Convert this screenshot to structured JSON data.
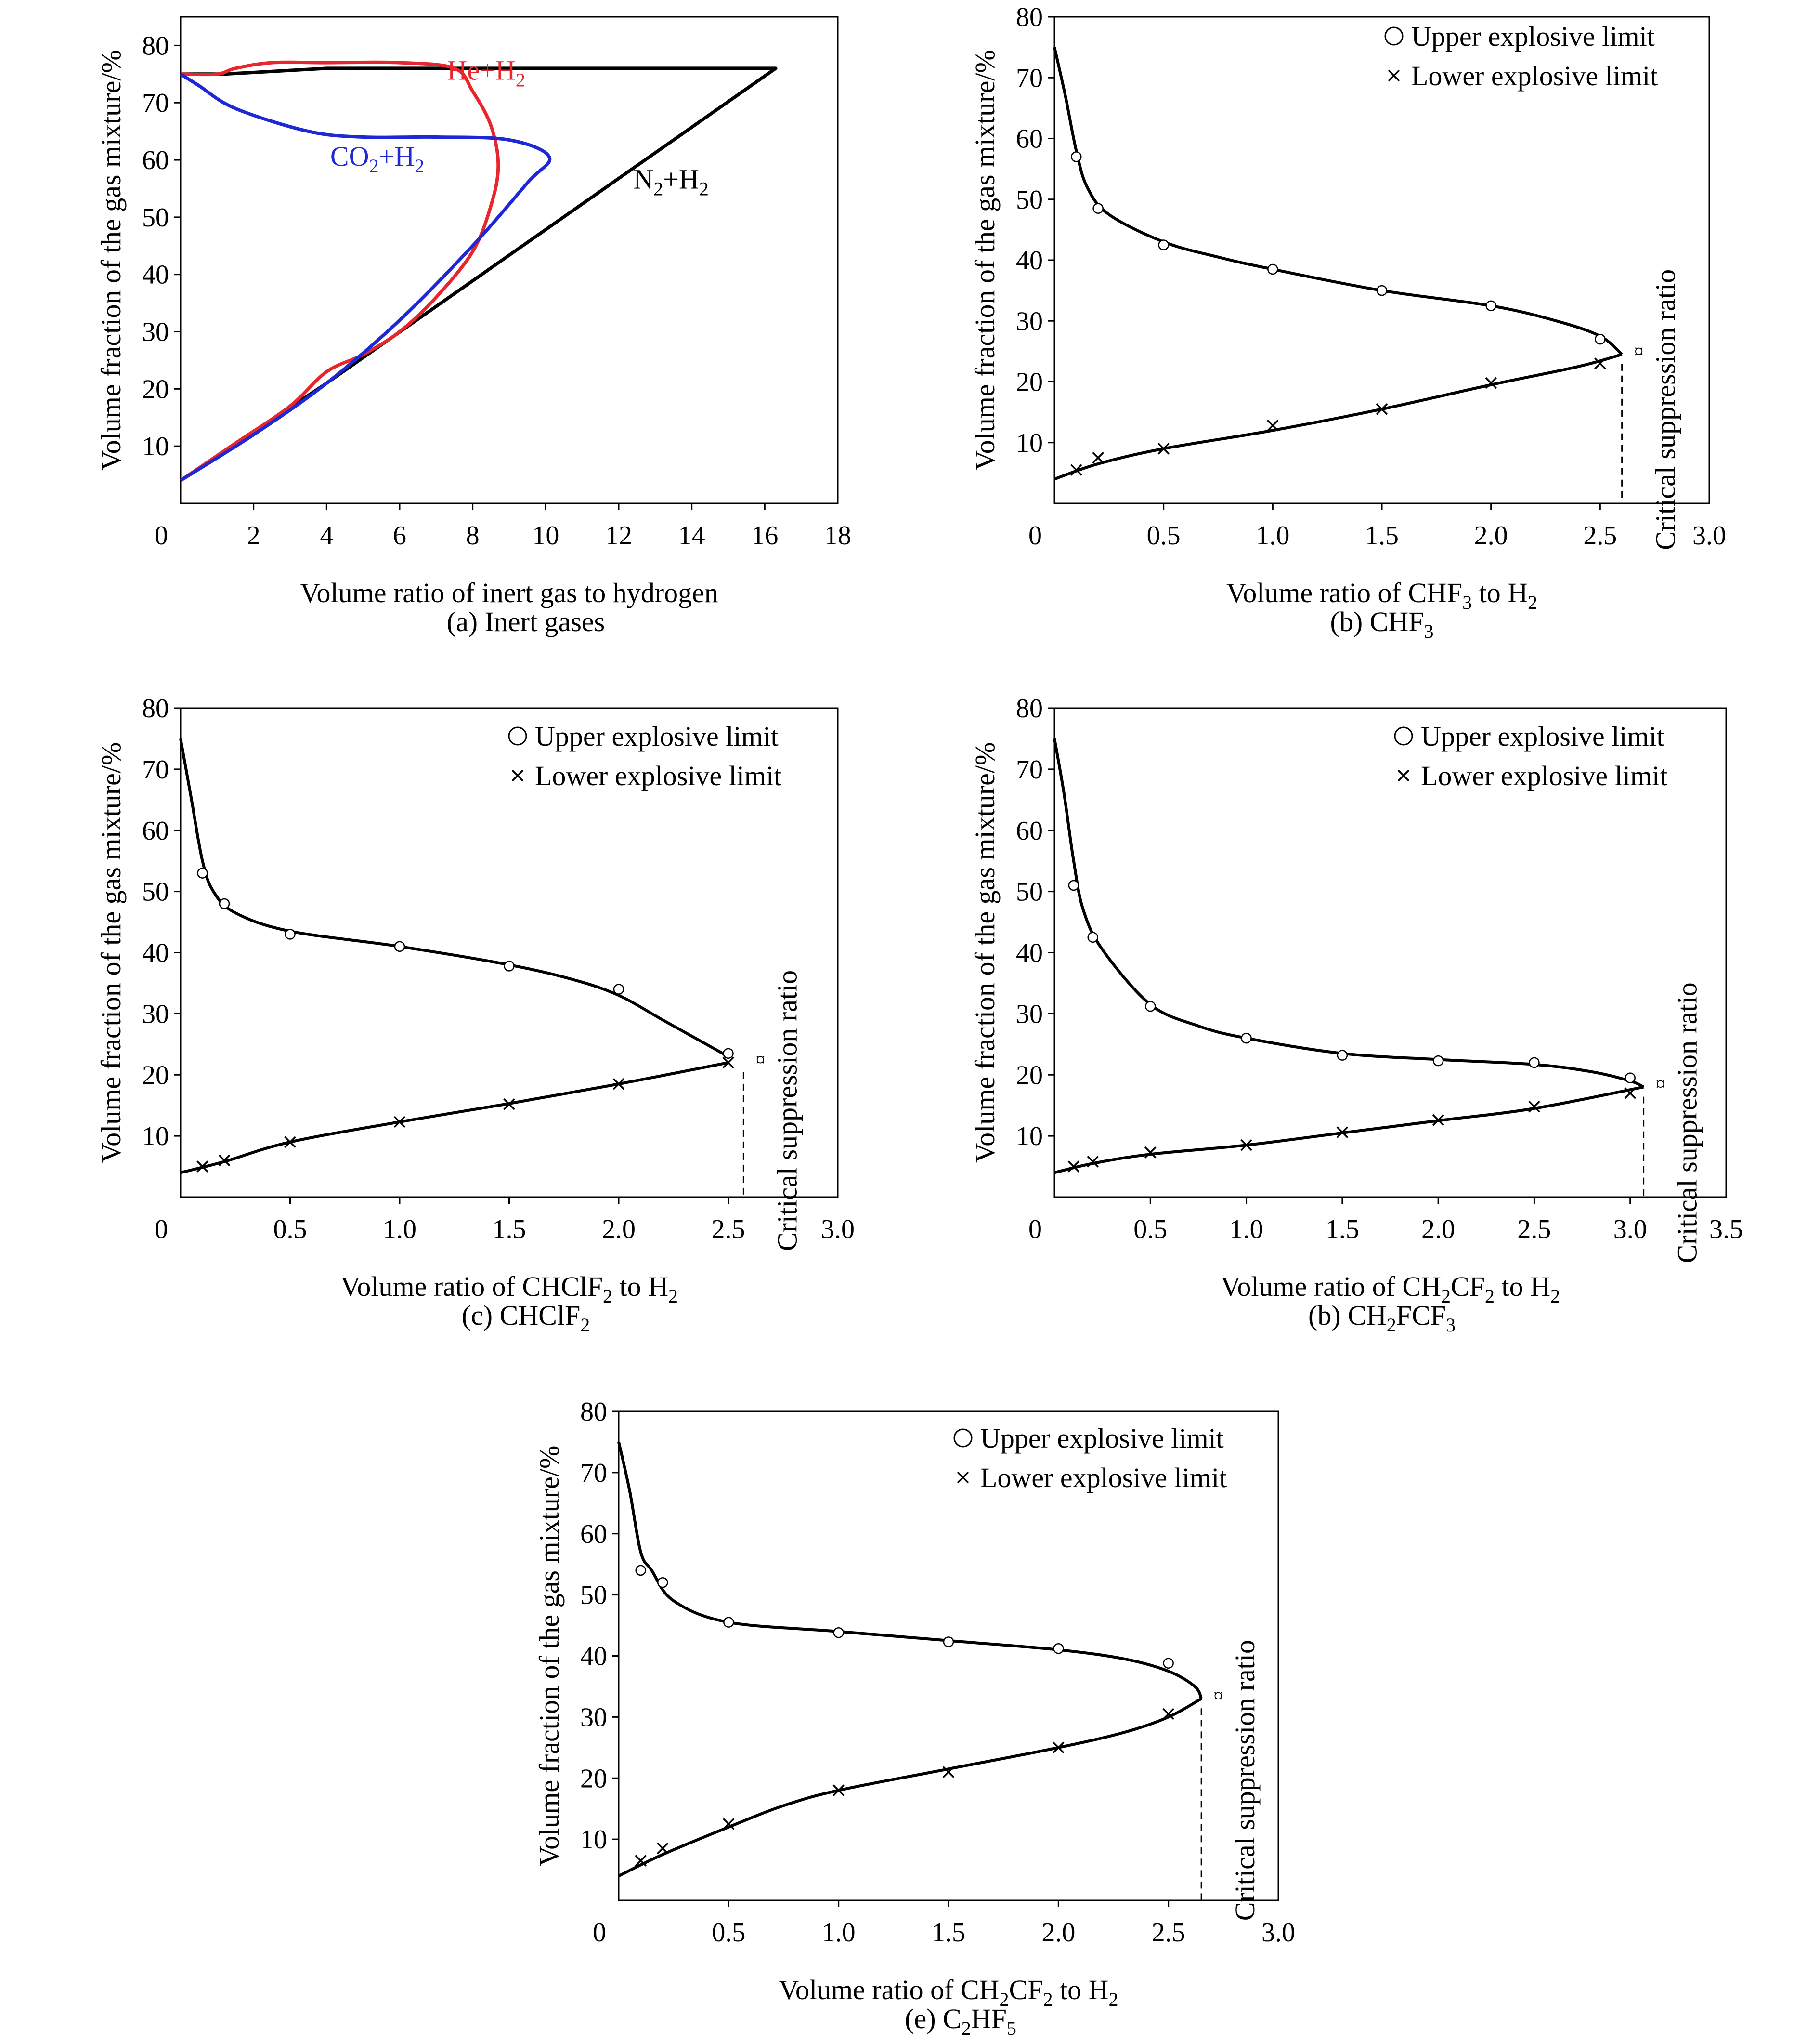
{
  "figure": {
    "panels": [
      {
        "caption": "(a) Inert gases"
      },
      {
        "caption": "(b) CHF3"
      },
      {
        "caption": "(c) CHClF2"
      },
      {
        "caption": "(b) CH2FCF3"
      },
      {
        "caption": "(e) C2HF5"
      }
    ]
  },
  "chart_data": [
    {
      "type": "line",
      "caption": "(a) Inert gases",
      "xlabel": "Volume ratio of inert gas to hydrogen",
      "ylabel": "Volume fraction of the gas mixture/%",
      "xlim": [
        0,
        18
      ],
      "ylim": [
        0,
        85
      ],
      "xticks": [
        0,
        2,
        4,
        6,
        8,
        10,
        12,
        14,
        16,
        18
      ],
      "yticks": [
        10,
        20,
        30,
        40,
        50,
        60,
        70,
        80
      ],
      "grid": false,
      "colors": {
        "N2": "#000000",
        "He": "#e8262b",
        "CO2": "#1f28d6"
      },
      "series": [
        {
          "name": "N₂+H₂",
          "color": "#000000",
          "points": [
            [
              0,
              4
            ],
            [
              4,
              21
            ],
            [
              16.3,
              76
            ],
            [
              4,
              76
            ],
            [
              1.2,
              75
            ],
            [
              0,
              75
            ]
          ]
        },
        {
          "name": "He+H₂",
          "color": "#e8262b",
          "points": [
            [
              0,
              4
            ],
            [
              1.5,
              10.5
            ],
            [
              3,
              17
            ],
            [
              4,
              23
            ],
            [
              5,
              26
            ],
            [
              6,
              30
            ],
            [
              7,
              36
            ],
            [
              8,
              44
            ],
            [
              8.5,
              52
            ],
            [
              8.7,
              59
            ],
            [
              8.5,
              66
            ],
            [
              8,
              72
            ],
            [
              7.5,
              76
            ],
            [
              6,
              77
            ],
            [
              4,
              77
            ],
            [
              2.5,
              77
            ],
            [
              1.5,
              76
            ],
            [
              1,
              75
            ],
            [
              0,
              75
            ]
          ]
        },
        {
          "name": "CO₂+H₂",
          "color": "#1f28d6",
          "points": [
            [
              0,
              4
            ],
            [
              2,
              12
            ],
            [
              4,
              21
            ],
            [
              6,
              32
            ],
            [
              8,
              45
            ],
            [
              9.5,
              56
            ],
            [
              10.1,
              60.5
            ],
            [
              9,
              63.5
            ],
            [
              7,
              64
            ],
            [
              5,
              64
            ],
            [
              3.5,
              65
            ],
            [
              1.5,
              69
            ],
            [
              0.5,
              73
            ],
            [
              0,
              75
            ]
          ]
        }
      ]
    },
    {
      "type": "line",
      "caption": "(b) CHF3",
      "xlabel": "Volume ratio of CHF3 to H2",
      "ylabel": "Volume fraction of the gas mixture/%",
      "xlim": [
        0,
        3.0
      ],
      "ylim": [
        0,
        80
      ],
      "xticks": [
        "0",
        "0.5",
        "1.0",
        "1.5",
        "2.0",
        "2.5",
        "3.0"
      ],
      "yticks": [
        10,
        20,
        30,
        40,
        50,
        60,
        70,
        80
      ],
      "legend": {
        "upper": "Upper explosive limit",
        "lower": "Lower explosive limit",
        "position": "top-right"
      },
      "annotation": "Critical suppression ratio",
      "critical_point": {
        "x": 2.6,
        "y": 24.5
      },
      "upper_points": {
        "x": [
          0.1,
          0.2,
          0.5,
          1.0,
          1.5,
          2.0,
          2.5
        ],
        "y": [
          57,
          48.5,
          42.5,
          38.5,
          35,
          32.5,
          27
        ]
      },
      "lower_points": {
        "x": [
          0.1,
          0.2,
          0.5,
          1.0,
          1.5,
          2.0,
          2.5
        ],
        "y": [
          5.5,
          7.5,
          9,
          12.8,
          15.5,
          19.8,
          23
        ]
      },
      "upper_curve": [
        [
          0,
          75
        ],
        [
          0.05,
          67
        ],
        [
          0.1,
          58
        ],
        [
          0.15,
          52
        ],
        [
          0.25,
          47.5
        ],
        [
          0.5,
          43
        ],
        [
          0.75,
          40.5
        ],
        [
          1,
          38.5
        ],
        [
          1.5,
          35
        ],
        [
          2,
          32.5
        ],
        [
          2.3,
          30
        ],
        [
          2.5,
          27.5
        ],
        [
          2.6,
          24.5
        ]
      ],
      "lower_curve": [
        [
          0,
          4
        ],
        [
          0.2,
          6.5
        ],
        [
          0.5,
          9
        ],
        [
          1,
          12
        ],
        [
          1.5,
          15.5
        ],
        [
          2,
          19.5
        ],
        [
          2.4,
          22.5
        ],
        [
          2.6,
          24.5
        ]
      ]
    },
    {
      "type": "line",
      "caption": "(c) CHClF2",
      "xlabel": "Volume ratio of CHClF2 to H2",
      "ylabel": "Volume fraction of the gas mixture/%",
      "xlim": [
        0,
        3.0
      ],
      "ylim": [
        0,
        80
      ],
      "xticks": [
        "0",
        "0.5",
        "1.0",
        "1.5",
        "2.0",
        "2.5",
        "3.0"
      ],
      "yticks": [
        10,
        20,
        30,
        40,
        50,
        60,
        70,
        80
      ],
      "legend": {
        "upper": "Upper explosive limit",
        "lower": "Lower explosive limit",
        "position": "top-right"
      },
      "annotation": "Critical suppression ratio",
      "critical_point": {
        "x": 2.57,
        "y": 22
      },
      "upper_points": {
        "x": [
          0.1,
          0.2,
          0.5,
          1.0,
          1.5,
          2.0,
          2.5
        ],
        "y": [
          53,
          48,
          43,
          41,
          37.8,
          34,
          23.5
        ]
      },
      "lower_points": {
        "x": [
          0.1,
          0.2,
          0.5,
          1.0,
          1.5,
          2.0,
          2.5
        ],
        "y": [
          5,
          6,
          9,
          12.3,
          15.2,
          18.5,
          22
        ]
      },
      "upper_curve": [
        [
          0,
          75
        ],
        [
          0.05,
          65
        ],
        [
          0.1,
          55
        ],
        [
          0.15,
          50
        ],
        [
          0.25,
          46.5
        ],
        [
          0.5,
          43.5
        ],
        [
          1,
          41
        ],
        [
          1.5,
          38
        ],
        [
          1.8,
          35.5
        ],
        [
          2,
          33
        ],
        [
          2.2,
          29
        ],
        [
          2.4,
          25
        ],
        [
          2.5,
          23
        ]
      ],
      "lower_curve": [
        [
          0,
          4
        ],
        [
          0.2,
          5.8
        ],
        [
          0.5,
          9
        ],
        [
          1,
          12.3
        ],
        [
          1.5,
          15.3
        ],
        [
          2,
          18.5
        ],
        [
          2.5,
          22
        ]
      ]
    },
    {
      "type": "line",
      "caption": "(b) CH2FCF3",
      "xlabel": "Volume ratio of CH2CF2 to H2",
      "ylabel": "Volume fraction of the gas mixture/%",
      "xlim": [
        0,
        3.5
      ],
      "ylim": [
        0,
        80
      ],
      "xticks": [
        "0",
        "0.5",
        "1.0",
        "1.5",
        "2.0",
        "2.5",
        "3.0",
        "3.5"
      ],
      "yticks": [
        10,
        20,
        30,
        40,
        50,
        60,
        70,
        80
      ],
      "legend": {
        "upper": "Upper explosive limit",
        "lower": "Lower explosive limit",
        "position": "top-right"
      },
      "annotation": "Critical suppression ratio",
      "critical_point": {
        "x": 3.07,
        "y": 18
      },
      "upper_points": {
        "x": [
          0.1,
          0.2,
          0.5,
          1.0,
          1.5,
          2.0,
          2.5,
          3.0
        ],
        "y": [
          51,
          42.5,
          31.2,
          26,
          23.2,
          22.3,
          22,
          19.5
        ]
      },
      "lower_points": {
        "x": [
          0.1,
          0.2,
          0.5,
          1.0,
          1.5,
          2.0,
          2.5,
          3.0
        ],
        "y": [
          5,
          5.8,
          7.3,
          8.5,
          10.6,
          12.6,
          14.8,
          17
        ]
      },
      "upper_curve": [
        [
          0,
          75
        ],
        [
          0.05,
          66
        ],
        [
          0.1,
          55
        ],
        [
          0.15,
          47
        ],
        [
          0.25,
          40.5
        ],
        [
          0.5,
          31.5
        ],
        [
          0.75,
          28
        ],
        [
          1,
          26
        ],
        [
          1.5,
          23.5
        ],
        [
          2,
          22.5
        ],
        [
          2.5,
          21.7
        ],
        [
          2.8,
          20.5
        ],
        [
          3,
          19
        ],
        [
          3.07,
          18
        ]
      ],
      "lower_curve": [
        [
          0,
          4
        ],
        [
          0.2,
          5.5
        ],
        [
          0.5,
          7
        ],
        [
          1,
          8.5
        ],
        [
          1.5,
          10.5
        ],
        [
          2,
          12.5
        ],
        [
          2.5,
          14.5
        ],
        [
          3.07,
          18
        ]
      ]
    },
    {
      "type": "line",
      "caption": "(e) C2HF5",
      "xlabel": "Volume ratio of CH2CF2 to H2",
      "ylabel": "Volume fraction of the gas mixture/%",
      "xlim": [
        0,
        3.0
      ],
      "ylim": [
        0,
        80
      ],
      "xticks": [
        "0",
        "0.5",
        "1.0",
        "1.5",
        "2.0",
        "2.5",
        "3.0"
      ],
      "yticks": [
        10,
        20,
        30,
        40,
        50,
        60,
        70,
        80
      ],
      "legend": {
        "upper": "Upper explosive limit",
        "lower": "Lower explosive limit",
        "position": "top-right"
      },
      "annotation": "Critical suppression ratio",
      "critical_point": {
        "x": 2.65,
        "y": 33
      },
      "upper_points": {
        "x": [
          0.1,
          0.2,
          0.5,
          1.0,
          1.5,
          2.0,
          2.5
        ],
        "y": [
          54,
          52,
          45.5,
          43.8,
          42.3,
          41.2,
          38.8
        ]
      },
      "lower_points": {
        "x": [
          0.1,
          0.2,
          0.5,
          1.0,
          1.5,
          2.0,
          2.5
        ],
        "y": [
          6.5,
          8.5,
          12.5,
          18,
          21,
          25,
          30.5
        ]
      },
      "upper_curve": [
        [
          0,
          75
        ],
        [
          0.05,
          67
        ],
        [
          0.1,
          57
        ],
        [
          0.15,
          54
        ],
        [
          0.25,
          49
        ],
        [
          0.5,
          45.5
        ],
        [
          1,
          44
        ],
        [
          1.5,
          42.5
        ],
        [
          2,
          41
        ],
        [
          2.3,
          39.5
        ],
        [
          2.5,
          37.5
        ],
        [
          2.62,
          35
        ],
        [
          2.65,
          33
        ]
      ],
      "lower_curve": [
        [
          0,
          4
        ],
        [
          0.2,
          7.5
        ],
        [
          0.5,
          12
        ],
        [
          0.75,
          15.5
        ],
        [
          1,
          18
        ],
        [
          1.5,
          21.5
        ],
        [
          2,
          25
        ],
        [
          2.3,
          27.5
        ],
        [
          2.5,
          30
        ],
        [
          2.65,
          33
        ]
      ]
    }
  ]
}
